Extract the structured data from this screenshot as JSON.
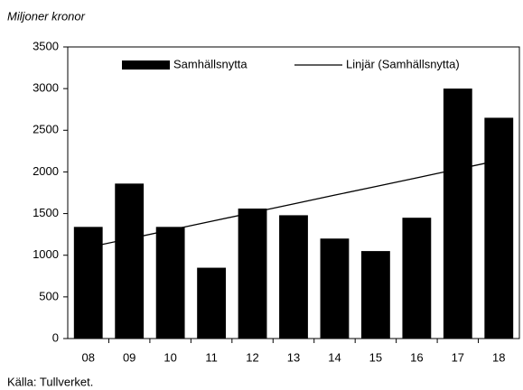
{
  "chart_data": {
    "type": "bar",
    "ylabel": "Miljoner kronor",
    "source": "Källa: Tullverket.",
    "categories": [
      "08",
      "09",
      "10",
      "11",
      "12",
      "13",
      "14",
      "15",
      "16",
      "17",
      "18"
    ],
    "series": [
      {
        "name": "Samhällsnytta",
        "type": "bar",
        "color": "#000000",
        "values": [
          1340,
          1860,
          1340,
          850,
          1560,
          1480,
          1200,
          1050,
          1450,
          3000,
          2650
        ]
      },
      {
        "name": "Linjär (Samhällsnytta)",
        "type": "line",
        "color": "#000000",
        "values": [
          1094,
          1198,
          1303,
          1407,
          1512,
          1616,
          1721,
          1825,
          1929,
          2034,
          2138
        ]
      }
    ],
    "ylim": [
      0,
      3500
    ],
    "yticks": [
      0,
      500,
      1000,
      1500,
      2000,
      2500,
      3000,
      3500
    ],
    "grid": false
  }
}
